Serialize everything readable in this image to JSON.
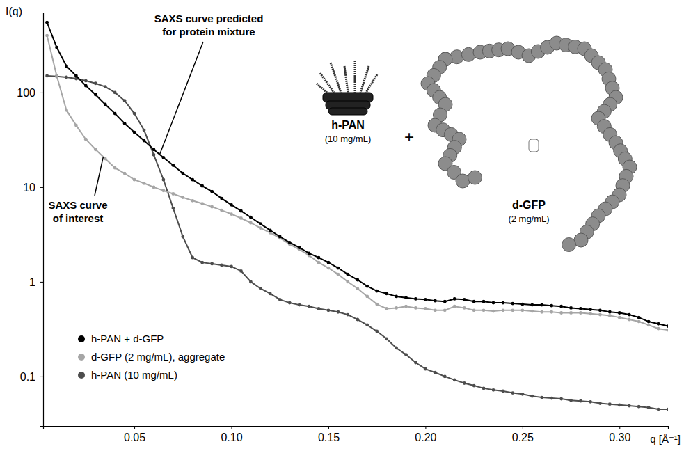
{
  "chart_data": {
    "type": "line",
    "marker": "circle",
    "log": "y",
    "grid": false,
    "legend": "lower left",
    "x_label": "q [Å⁻¹]",
    "y_label": "I(q)",
    "xlim": [
      0.003,
      0.325
    ],
    "ylim": [
      0.03,
      700
    ],
    "xticks": [
      0.05,
      {
        "value": 0.1,
        "label": "0.10"
      },
      0.15,
      {
        "value": 0.2,
        "label": "0.20"
      },
      0.25,
      {
        "value": 0.3,
        "label": "0.30"
      }
    ],
    "yticks": [
      0.1,
      1,
      10,
      100
    ],
    "x": [
      0.005,
      0.01,
      0.015,
      0.02,
      0.025,
      0.03,
      0.035,
      0.04,
      0.045,
      0.05,
      0.055,
      0.06,
      0.065,
      0.07,
      0.075,
      0.08,
      0.085,
      0.09,
      0.095,
      0.1,
      0.105,
      0.11,
      0.115,
      0.12,
      0.125,
      0.13,
      0.135,
      0.14,
      0.145,
      0.15,
      0.155,
      0.16,
      0.165,
      0.17,
      0.175,
      0.18,
      0.185,
      0.19,
      0.195,
      0.2,
      0.205,
      0.21,
      0.215,
      0.22,
      0.225,
      0.23,
      0.235,
      0.24,
      0.245,
      0.25,
      0.255,
      0.26,
      0.265,
      0.27,
      0.275,
      0.28,
      0.285,
      0.29,
      0.295,
      0.3,
      0.305,
      0.31,
      0.315,
      0.32,
      0.325
    ],
    "series": [
      {
        "name": "h-PAN + d-GFP",
        "color": "#000000",
        "values": [
          550,
          300,
          190,
          150,
          118,
          95,
          75,
          60,
          47,
          38,
          31,
          25,
          20.5,
          17,
          14,
          12,
          10.3,
          9,
          7.6,
          6.5,
          5.6,
          4.8,
          4.1,
          3.5,
          3.0,
          2.6,
          2.3,
          2.0,
          1.8,
          1.6,
          1.4,
          1.2,
          1.05,
          0.9,
          0.8,
          0.75,
          0.7,
          0.68,
          0.66,
          0.65,
          0.63,
          0.62,
          0.66,
          0.65,
          0.62,
          0.62,
          0.6,
          0.6,
          0.59,
          0.58,
          0.57,
          0.57,
          0.56,
          0.55,
          0.53,
          0.52,
          0.51,
          0.5,
          0.48,
          0.47,
          0.45,
          0.42,
          0.38,
          0.36,
          0.34
        ]
      },
      {
        "name": "d-GFP (2 mg/mL), aggregate",
        "color": "#a6a6a6",
        "values": [
          400,
          150,
          65,
          45,
          32,
          25,
          20,
          16,
          14,
          12,
          11,
          10,
          9.2,
          8.5,
          7.8,
          7.2,
          6.7,
          6.2,
          5.7,
          5.2,
          4.7,
          4.2,
          3.7,
          3.3,
          2.9,
          2.5,
          2.2,
          1.9,
          1.6,
          1.4,
          1.2,
          1.0,
          0.85,
          0.7,
          0.58,
          0.52,
          0.53,
          0.55,
          0.53,
          0.52,
          0.5,
          0.5,
          0.55,
          0.53,
          0.5,
          0.5,
          0.49,
          0.5,
          0.5,
          0.5,
          0.49,
          0.48,
          0.48,
          0.47,
          0.47,
          0.47,
          0.46,
          0.45,
          0.44,
          0.42,
          0.4,
          0.38,
          0.35,
          0.32,
          0.31
        ]
      },
      {
        "name": "h-PAN (10 mg/mL)",
        "color": "#4d4d4d",
        "values": [
          150,
          148,
          145,
          140,
          133,
          125,
          115,
          100,
          82,
          60,
          40,
          22,
          12,
          6,
          3,
          1.8,
          1.6,
          1.55,
          1.5,
          1.45,
          1.3,
          1.0,
          0.85,
          0.75,
          0.65,
          0.6,
          0.57,
          0.55,
          0.52,
          0.5,
          0.48,
          0.45,
          0.4,
          0.35,
          0.3,
          0.25,
          0.2,
          0.17,
          0.14,
          0.12,
          0.11,
          0.1,
          0.092,
          0.085,
          0.08,
          0.075,
          0.072,
          0.07,
          0.067,
          0.065,
          0.062,
          0.06,
          0.059,
          0.058,
          0.056,
          0.055,
          0.054,
          0.052,
          0.051,
          0.05,
          0.049,
          0.048,
          0.047,
          0.045,
          0.045
        ]
      }
    ],
    "annotations": [
      {
        "text": [
          "SAXS curve predicted",
          "for protein mixture"
        ],
        "x": 0.063,
        "y": 22
      },
      {
        "text": [
          "SAXS curve",
          "of interest"
        ],
        "x": 0.034,
        "y": 21
      }
    ],
    "inset": {
      "items": [
        {
          "label": "h-PAN",
          "note": "(10 mg/mL)"
        },
        {
          "label": "d-GFP",
          "note": "(2 mg/mL)"
        }
      ],
      "operator": "+"
    }
  }
}
